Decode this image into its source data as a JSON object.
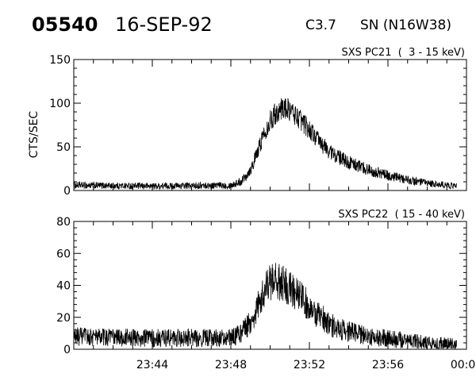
{
  "header": {
    "event_id": "05540",
    "date": "16-SEP-92",
    "flare_class": "C3.7",
    "location": "SN (N16W38)"
  },
  "chart_data": [
    {
      "type": "line",
      "panel_label": "SXS PC21  (  3 - 15 keV)",
      "ylabel": "CTS/SEC",
      "xlabel": "",
      "xlim": [
        "23:40:00",
        "00:00:00"
      ],
      "ylim": [
        0,
        150
      ],
      "yticks": [
        0,
        50,
        100,
        150
      ],
      "xtick_labels": [],
      "grid": false,
      "series": [
        {
          "x": [
            "23:40:00",
            "23:44:00",
            "23:48:00",
            "23:48:30",
            "23:49:00",
            "23:49:20",
            "23:49:40",
            "23:50:00",
            "23:50:20",
            "23:50:40",
            "23:51:00",
            "23:51:30",
            "23:52:00",
            "23:52:30",
            "23:53:00",
            "23:53:30",
            "23:54:00",
            "23:55:00",
            "23:56:00",
            "23:57:00",
            "23:58:00",
            "23:59:00",
            "23:59:30"
          ],
          "values": [
            6,
            5,
            6,
            10,
            24,
            42,
            65,
            80,
            90,
            95,
            92,
            82,
            70,
            56,
            45,
            38,
            32,
            24,
            17,
            12,
            8,
            6,
            5
          ]
        }
      ]
    },
    {
      "type": "line",
      "panel_label": "SXS PC22  ( 15 - 40 keV)",
      "ylabel": "",
      "xlabel": "",
      "xlim": [
        "23:40:00",
        "00:00:00"
      ],
      "ylim": [
        0,
        80
      ],
      "yticks": [
        0,
        20,
        40,
        60,
        80
      ],
      "xtick_labels": [
        "23:44",
        "23:48",
        "23:52",
        "23:56",
        "00:00"
      ],
      "grid": false,
      "series": [
        {
          "x": [
            "23:40:00",
            "23:44:00",
            "23:48:00",
            "23:48:30",
            "23:49:00",
            "23:49:20",
            "23:49:40",
            "23:50:00",
            "23:50:20",
            "23:50:40",
            "23:51:00",
            "23:51:30",
            "23:52:00",
            "23:52:30",
            "23:53:00",
            "23:53:30",
            "23:54:00",
            "23:55:00",
            "23:56:00",
            "23:57:00",
            "23:58:00",
            "23:59:00",
            "23:59:30"
          ],
          "values": [
            8,
            7,
            7,
            10,
            17,
            26,
            36,
            42,
            43,
            41,
            38,
            33,
            27,
            21,
            16,
            13,
            11,
            8,
            7,
            5,
            4,
            3,
            3
          ]
        }
      ]
    }
  ]
}
